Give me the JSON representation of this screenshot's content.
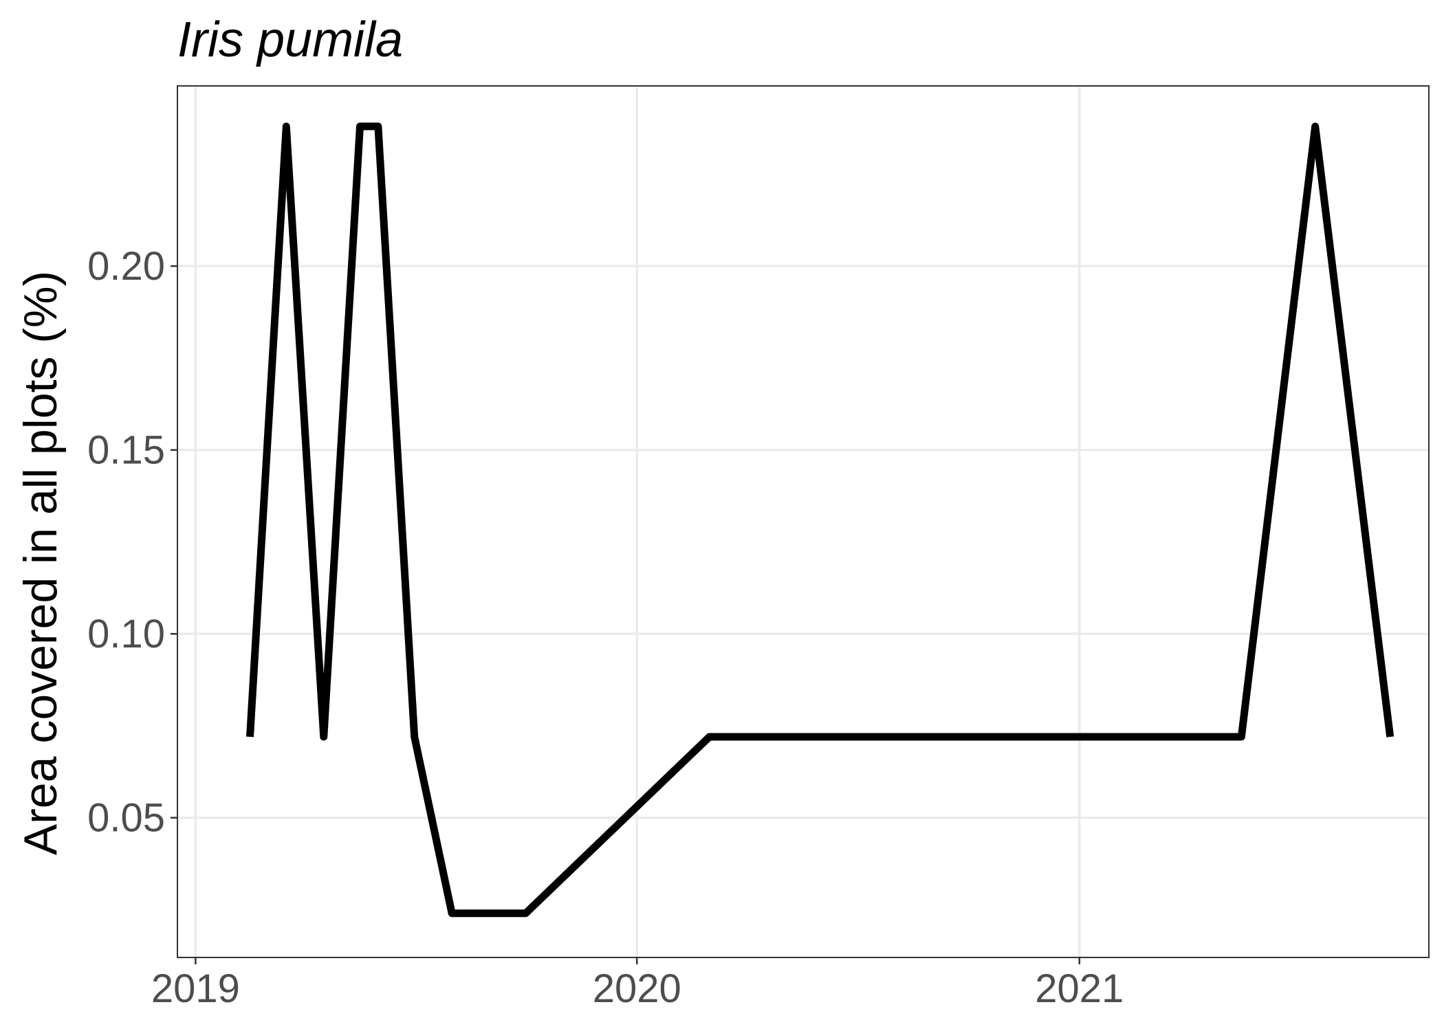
{
  "chart_data": {
    "type": "line",
    "title": "Iris pumila",
    "xlabel": "",
    "ylabel": "Area covered in all plots (%)",
    "x_ticks": [
      "2019",
      "2020",
      "2021"
    ],
    "y_ticks": [
      "0.05",
      "0.10",
      "0.15",
      "0.20"
    ],
    "xlim": [
      "2018-12-17",
      "2021-10-17"
    ],
    "ylim": [
      0.012,
      0.249
    ],
    "grid": true,
    "legend": "none",
    "line_color": "#000000",
    "series": [
      {
        "x": [
          "2019-02-15",
          "2019-03-17",
          "2019-04-17",
          "2019-05-17",
          "2019-06-01",
          "2019-07-01",
          "2019-08-01",
          "2019-09-01",
          "2019-10-01",
          "2020-03-01",
          "2021-05-15",
          "2021-07-15",
          "2021-09-15"
        ],
        "values": [
          0.072,
          0.238,
          0.072,
          0.238,
          0.238,
          0.072,
          0.024,
          0.024,
          0.024,
          0.072,
          0.072,
          0.238,
          0.072
        ]
      }
    ]
  }
}
